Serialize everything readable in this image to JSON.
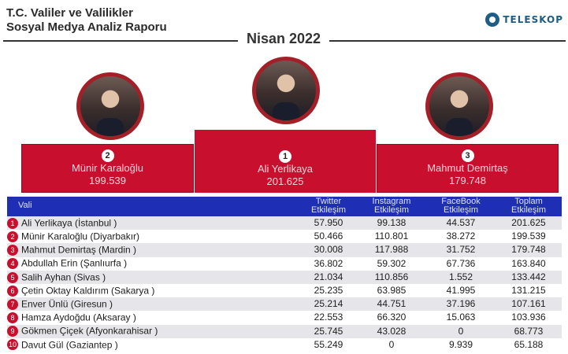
{
  "header": {
    "title_line1": "T.C. Valiler ve Valilikler",
    "title_line2": "Sosyal Medya Analiz Raporu",
    "logo_text": "TELESKOP",
    "period": "Nisan 2022",
    "accent_color": "#c8102e",
    "table_header_color": "#1e2fb5"
  },
  "podium": {
    "first": {
      "rank": "1",
      "name": "Ali Yerlikaya",
      "score": "201.625"
    },
    "second": {
      "rank": "2",
      "name": "Münir Karaloğlu",
      "score": "199.539"
    },
    "third": {
      "rank": "3",
      "name": "Mahmut Demirtaş",
      "score": "179.748"
    }
  },
  "table": {
    "columns": {
      "name": "Vali",
      "twitter_1": "Twitter",
      "twitter_2": "Etkileşim",
      "instagram_1": "Instagram",
      "instagram_2": "Etkileşim",
      "facebook_1": "FaceBook",
      "facebook_2": "Etkileşim",
      "total_1": "Toplam",
      "total_2": "Etkileşim"
    },
    "rows": [
      {
        "rank": "1",
        "name": "Ali Yerlikaya (İstanbul )",
        "twitter": "57.950",
        "instagram": "99.138",
        "facebook": "44.537",
        "total": "201.625"
      },
      {
        "rank": "2",
        "name": "Münir Karaloğlu (Diyarbakır)",
        "twitter": "50.466",
        "instagram": "110.801",
        "facebook": "38.272",
        "total": "199.539"
      },
      {
        "rank": "3",
        "name": "Mahmut Demirtaş (Mardin )",
        "twitter": "30.008",
        "instagram": "117.988",
        "facebook": "31.752",
        "total": "179.748"
      },
      {
        "rank": "4",
        "name": "Abdullah Erin (Şanlıurfa )",
        "twitter": "36.802",
        "instagram": "59.302",
        "facebook": "67.736",
        "total": "163.840"
      },
      {
        "rank": "5",
        "name": "Salih Ayhan (Sivas )",
        "twitter": "21.034",
        "instagram": "110.856",
        "facebook": "1.552",
        "total": "133.442"
      },
      {
        "rank": "6",
        "name": "Çetin Oktay Kaldırım (Sakarya )",
        "twitter": "25.235",
        "instagram": "63.985",
        "facebook": "41.995",
        "total": "131.215"
      },
      {
        "rank": "7",
        "name": "Enver Ünlü (Giresun )",
        "twitter": "25.214",
        "instagram": "44.751",
        "facebook": "37.196",
        "total": "107.161"
      },
      {
        "rank": "8",
        "name": "Hamza Aydoğdu (Aksaray )",
        "twitter": "22.553",
        "instagram": "66.320",
        "facebook": "15.063",
        "total": "103.936"
      },
      {
        "rank": "9",
        "name": "Gökmen Çiçek (Afyonkarahisar )",
        "twitter": "25.745",
        "instagram": "43.028",
        "facebook": "0",
        "total": "68.773"
      },
      {
        "rank": "10",
        "name": "Davut Gül (Gaziantep )",
        "twitter": "55.249",
        "instagram": "0",
        "facebook": "9.939",
        "total": "65.188"
      }
    ]
  }
}
